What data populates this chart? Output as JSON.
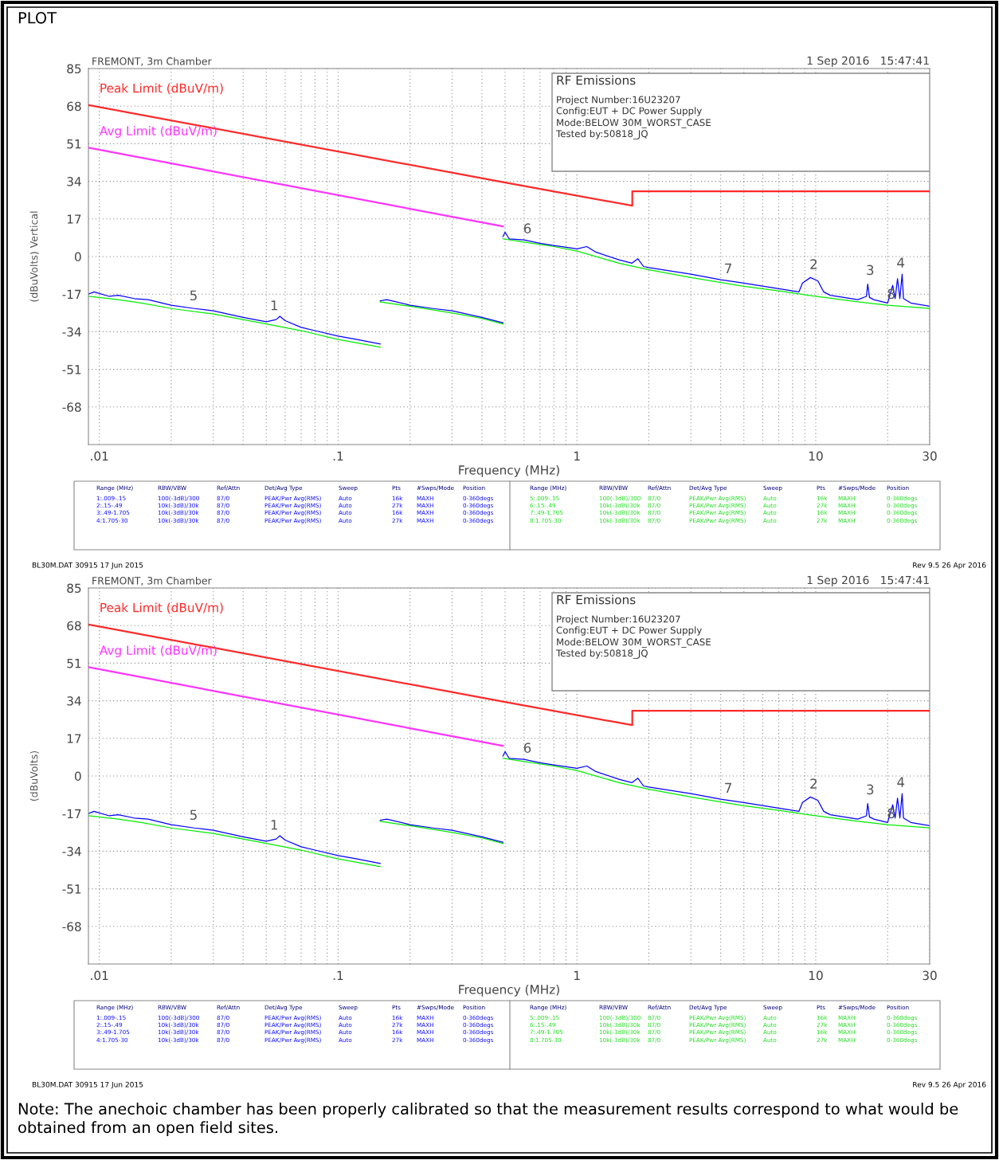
{
  "chart_data": [
    {
      "type": "line",
      "title": "FREMONT, 3m Chamber",
      "subtitle": "1 Sep 2016   15:47:41",
      "xlabel": "Frequency (MHz)",
      "ylabel": "(dBuVolts) Vertical",
      "log": "x",
      "grid": true,
      "legend": false,
      "xlim": [
        0.009,
        30
      ],
      "ylim": [
        -85,
        85
      ],
      "xticks": [
        {
          "value": 0.01,
          "label": ".01"
        },
        {
          "value": 0.02,
          "label": null
        },
        {
          "value": 0.03,
          "label": null
        },
        {
          "value": 0.04,
          "label": null
        },
        {
          "value": 0.05,
          "label": null
        },
        {
          "value": 0.06,
          "label": null
        },
        {
          "value": 0.07,
          "label": null
        },
        {
          "value": 0.08,
          "label": null
        },
        {
          "value": 0.09,
          "label": null
        },
        {
          "value": 0.1,
          "label": ".1"
        },
        {
          "value": 0.2,
          "label": null
        },
        {
          "value": 0.3,
          "label": null
        },
        {
          "value": 0.4,
          "label": null
        },
        {
          "value": 0.5,
          "label": null
        },
        {
          "value": 0.6,
          "label": null
        },
        {
          "value": 0.7,
          "label": null
        },
        {
          "value": 0.8,
          "label": null
        },
        {
          "value": 0.9,
          "label": null
        },
        1,
        {
          "value": 2,
          "label": null
        },
        {
          "value": 3,
          "label": null
        },
        {
          "value": 4,
          "label": null
        },
        {
          "value": 5,
          "label": null
        },
        {
          "value": 6,
          "label": null
        },
        {
          "value": 7,
          "label": null
        },
        {
          "value": 8,
          "label": null
        },
        {
          "value": 9,
          "label": null
        },
        10,
        {
          "value": 20,
          "label": null
        },
        30
      ],
      "yticks": [
        -68,
        -51,
        -34,
        -17,
        0,
        17,
        34,
        51,
        68,
        85
      ],
      "series": [
        {
          "name": "Peak Limit (dBuV/m)",
          "color": "#ff2a2a",
          "x": [
            0.009,
            0.49,
            1.705,
            1.705,
            30
          ],
          "values": [
            68.5,
            33.6,
            23,
            29.5,
            29.5
          ]
        },
        {
          "name": "Avg Limit (dBuV/m)",
          "color": "#ff33ff",
          "x": [
            0.009,
            0.49
          ],
          "values": [
            49.2,
            13.6
          ]
        },
        {
          "color": "#00ee00",
          "x": [
            0.009,
            0.012,
            0.015,
            0.02,
            0.03,
            0.04,
            0.05,
            0.07,
            0.1,
            0.12,
            0.15
          ],
          "values": [
            -18,
            -19.5,
            -21,
            -23.5,
            -26,
            -28.5,
            -30.5,
            -33.5,
            -37.5,
            -39,
            -41
          ]
        },
        {
          "color": "#00ee00",
          "x": [
            0.15,
            0.2,
            0.3,
            0.4,
            0.49
          ],
          "values": [
            -20.5,
            -22.5,
            -25.5,
            -28,
            -30.5
          ]
        },
        {
          "color": "#00ee00",
          "x": [
            0.49,
            0.6,
            0.8,
            1,
            1.5,
            2,
            3,
            5,
            7,
            10,
            15,
            20,
            30
          ],
          "values": [
            8,
            6.5,
            4.5,
            2.5,
            -3,
            -6,
            -9.5,
            -13.5,
            -15.5,
            -18,
            -20.5,
            -22,
            -23.5
          ]
        },
        {
          "color": "#0000ff",
          "x": [
            0.009,
            0.0095,
            0.011,
            0.012,
            0.014,
            0.016,
            0.02,
            0.025,
            0.03,
            0.04,
            0.05,
            0.055,
            0.057,
            0.06,
            0.07,
            0.08,
            0.1,
            0.12,
            0.15
          ],
          "values": [
            -17,
            -16,
            -18,
            -17.5,
            -19,
            -19.5,
            -22,
            -23.5,
            -24.5,
            -27.5,
            -29.5,
            -28.5,
            -27,
            -29,
            -32,
            -33.5,
            -36,
            -37.5,
            -39.5
          ]
        },
        {
          "color": "#0000ff",
          "x": [
            0.15,
            0.16,
            0.2,
            0.25,
            0.3,
            0.4,
            0.49
          ],
          "values": [
            -20,
            -19.5,
            -22,
            -23.5,
            -24.5,
            -27.5,
            -30
          ]
        },
        {
          "color": "#0000ff",
          "x": [
            0.49,
            0.5,
            0.52,
            0.6,
            0.7,
            0.8,
            1,
            1.1,
            1.2,
            1.5,
            1.7,
            1.8,
            1.9,
            2,
            3,
            4,
            5,
            7,
            8.5,
            8.8,
            9.5,
            10.2,
            10.8,
            11.5,
            15,
            16.3,
            16.5,
            16.8,
            17.5,
            20,
            21,
            21.5,
            22,
            22.5,
            23,
            23.3,
            25,
            30
          ],
          "values": [
            9,
            11,
            8,
            7.5,
            6,
            5,
            3.5,
            4.5,
            2,
            -1.5,
            -3,
            -1,
            -4.5,
            -5,
            -8,
            -10.5,
            -12,
            -14.5,
            -16,
            -12,
            -9.5,
            -11,
            -16,
            -17.5,
            -19.5,
            -18,
            -12.5,
            -18.5,
            -19.5,
            -21,
            -13,
            -19,
            -10,
            -19,
            -8,
            -19,
            -21,
            -22.5
          ]
        }
      ],
      "annotations": [
        "PLOT",
        "RF Emissions",
        "Project Number:16U23207",
        "Config:EUT + DC Power Supply",
        "Mode:BELOW 30M_WORST_CASE",
        "Tested by:50818_JQ",
        "BL30M.DAT 30915 17 Jun 2015",
        "Rev 9.5 26 Apr 2016",
        "Range (MHz)",
        "RBW/VBW",
        "Ref/Attn",
        "Det/Avg Type",
        "Sweep",
        "Pts",
        "#Swps/Mode",
        "Position",
        "1:.009-.15",
        "100(-3dB)/300",
        "87/0",
        "PEAK/Pwr Avg(RMS)",
        "Auto",
        "16k",
        "MAXH",
        "0-360degs",
        "2:.15-.49",
        "10k(-3dB)/30k",
        "87/0",
        "PEAK/Pwr Avg(RMS)",
        "Auto",
        "27k",
        "MAXH",
        "0-360degs",
        "3:.49-1.705",
        "10k(-3dB)/30k",
        "87/0",
        "PEAK/Pwr Avg(RMS)",
        "Auto",
        "16k",
        "MAXH",
        "0-360degs",
        "4:1.705-30",
        "10k(-3dB)/30k",
        "87/0",
        "PEAK/Pwr Avg(RMS)",
        "Auto",
        "27k",
        "MAXH",
        "0-360degs",
        "Range (MHz)",
        "RBW/VBW",
        "Ref/Attn",
        "Det/Avg Type",
        "Sweep",
        "Pts",
        "#Swps/Mode",
        "Position",
        "5:.009-.15",
        "100(-3dB)/300",
        "87/0",
        "PEAK/Pwr Avg(RMS)",
        "Auto",
        "16k",
        "MAXH",
        "0-360degs",
        "6:.15-.49",
        "10k(-3dB)/30k",
        "87/0",
        "PEAK/Pwr Avg(RMS)",
        "Auto",
        "27k",
        "MAXH",
        "0-360degs",
        "7:.49-1.705",
        "10k(-3dB)/30k",
        "87/0",
        "PEAK/Pwr Avg(RMS)",
        "Auto",
        "16k",
        "MAXH",
        "0-360degs",
        "8:1.705-30",
        "10k(-3dB)/30k",
        "87/0",
        "PEAK/Pwr Avg(RMS)",
        "Auto",
        "27k",
        "MAXH",
        "0-360degs",
        {
          "text": "1",
          "x": 0.054,
          "y": -28.5
        },
        {
          "text": "5",
          "x": 0.0248,
          "y": -24
        },
        {
          "text": "6",
          "x": 0.62,
          "y": 6.3
        },
        {
          "text": "7",
          "x": 4.3,
          "y": -11.8
        },
        {
          "text": "2",
          "x": 9.8,
          "y": -9.9
        },
        {
          "text": "3",
          "x": 16.9,
          "y": -12.5
        },
        {
          "text": "8",
          "x": 20.7,
          "y": -23.3
        },
        {
          "text": "4",
          "x": 22.7,
          "y": -9.2
        }
      ]
    },
    {
      "type": "line",
      "title": "FREMONT, 3m Chamber",
      "subtitle": "1 Sep 2016   15:47:41",
      "xlabel": "Frequency (MHz)",
      "ylabel": "(dBuVolts)",
      "log": "x",
      "grid": true,
      "legend": false,
      "xlim": [
        0.009,
        30
      ],
      "ylim": [
        -85,
        85
      ],
      "xticks": [
        {
          "value": 0.01,
          "label": ".01"
        },
        {
          "value": 0.02,
          "label": null
        },
        {
          "value": 0.03,
          "label": null
        },
        {
          "value": 0.04,
          "label": null
        },
        {
          "value": 0.05,
          "label": null
        },
        {
          "value": 0.06,
          "label": null
        },
        {
          "value": 0.07,
          "label": null
        },
        {
          "value": 0.08,
          "label": null
        },
        {
          "value": 0.09,
          "label": null
        },
        {
          "value": 0.1,
          "label": ".1"
        },
        {
          "value": 0.2,
          "label": null
        },
        {
          "value": 0.3,
          "label": null
        },
        {
          "value": 0.4,
          "label": null
        },
        {
          "value": 0.5,
          "label": null
        },
        {
          "value": 0.6,
          "label": null
        },
        {
          "value": 0.7,
          "label": null
        },
        {
          "value": 0.8,
          "label": null
        },
        {
          "value": 0.9,
          "label": null
        },
        1,
        {
          "value": 2,
          "label": null
        },
        {
          "value": 3,
          "label": null
        },
        {
          "value": 4,
          "label": null
        },
        {
          "value": 5,
          "label": null
        },
        {
          "value": 6,
          "label": null
        },
        {
          "value": 7,
          "label": null
        },
        {
          "value": 8,
          "label": null
        },
        {
          "value": 9,
          "label": null
        },
        10,
        {
          "value": 20,
          "label": null
        },
        30
      ],
      "yticks": [
        -68,
        -51,
        -34,
        -17,
        0,
        17,
        34,
        51,
        68,
        85
      ],
      "series": [
        {
          "name": "Peak Limit (dBuV/m)",
          "color": "#ff2a2a",
          "x": [
            0.009,
            0.49,
            1.705,
            1.705,
            30
          ],
          "values": [
            68.5,
            33.6,
            23,
            29.5,
            29.5
          ]
        },
        {
          "name": "Avg Limit (dBuV/m)",
          "color": "#ff33ff",
          "x": [
            0.009,
            0.49
          ],
          "values": [
            49.2,
            13.6
          ]
        },
        {
          "color": "#00ee00",
          "x": [
            0.009,
            0.012,
            0.015,
            0.02,
            0.03,
            0.04,
            0.05,
            0.07,
            0.1,
            0.12,
            0.15
          ],
          "values": [
            -18,
            -19.5,
            -21,
            -23.5,
            -26,
            -28.5,
            -30.5,
            -33.5,
            -37.5,
            -39,
            -41
          ]
        },
        {
          "color": "#00ee00",
          "x": [
            0.15,
            0.2,
            0.3,
            0.4,
            0.49
          ],
          "values": [
            -20.5,
            -22.5,
            -25.5,
            -28,
            -30.5
          ]
        },
        {
          "color": "#00ee00",
          "x": [
            0.49,
            0.6,
            0.8,
            1,
            1.5,
            2,
            3,
            5,
            7,
            10,
            15,
            20,
            30
          ],
          "values": [
            8,
            6.5,
            4.5,
            2.5,
            -3,
            -6,
            -9.5,
            -13.5,
            -15.5,
            -18,
            -20.5,
            -22,
            -23.5
          ]
        },
        {
          "color": "#0000ff",
          "x": [
            0.009,
            0.0095,
            0.011,
            0.012,
            0.014,
            0.016,
            0.02,
            0.025,
            0.03,
            0.04,
            0.05,
            0.055,
            0.057,
            0.06,
            0.07,
            0.08,
            0.1,
            0.12,
            0.15
          ],
          "values": [
            -17,
            -16,
            -18,
            -17.5,
            -19,
            -19.5,
            -22,
            -23.5,
            -24.5,
            -27.5,
            -29.5,
            -28.5,
            -27,
            -29,
            -32,
            -33.5,
            -36,
            -37.5,
            -39.5
          ]
        },
        {
          "color": "#0000ff",
          "x": [
            0.15,
            0.16,
            0.2,
            0.25,
            0.3,
            0.4,
            0.49
          ],
          "values": [
            -20,
            -19.5,
            -22,
            -23.5,
            -24.5,
            -27.5,
            -30
          ]
        },
        {
          "color": "#0000ff",
          "x": [
            0.49,
            0.5,
            0.52,
            0.6,
            0.7,
            0.8,
            1,
            1.1,
            1.2,
            1.5,
            1.7,
            1.8,
            1.9,
            2,
            3,
            4,
            5,
            7,
            8.5,
            8.8,
            9.5,
            10.2,
            10.8,
            11.5,
            15,
            16.3,
            16.5,
            16.8,
            17.5,
            20,
            21,
            21.5,
            22,
            22.5,
            23,
            23.3,
            25,
            30
          ],
          "values": [
            9,
            11,
            8,
            7.5,
            6,
            5,
            3.5,
            4.5,
            2,
            -1.5,
            -3,
            -1,
            -4.5,
            -5,
            -8,
            -10.5,
            -12,
            -14.5,
            -16,
            -12,
            -9.5,
            -11,
            -16,
            -17.5,
            -19.5,
            -18,
            -12.5,
            -18.5,
            -19.5,
            -21,
            -13,
            -19,
            -10,
            -19,
            -8,
            -19,
            -21,
            -22.5
          ]
        }
      ],
      "annotations": [
        "RF Emissions",
        "Project Number:16U23207",
        "Config:EUT + DC Power Supply",
        "Mode:BELOW 30M_WORST_CASE",
        "Tested by:50818_JQ",
        "BL30M.DAT 30915 17 Jun 2015",
        "Rev 9.5 26 Apr 2016",
        "Range (MHz)",
        "RBW/VBW",
        "Ref/Attn",
        "Det/Avg Type",
        "Sweep",
        "Pts",
        "#Swps/Mode",
        "Position",
        "1:.009-.15",
        "100(-3dB)/300",
        "87/0",
        "PEAK/Pwr Avg(RMS)",
        "Auto",
        "16k",
        "MAXH",
        "0-360degs",
        "2:.15-.49",
        "10k(-3dB)/30k",
        "87/0",
        "PEAK/Pwr Avg(RMS)",
        "Auto",
        "27k",
        "MAXH",
        "0-360degs",
        "3:.49-1.705",
        "10k(-3dB)/30k",
        "87/0",
        "PEAK/Pwr Avg(RMS)",
        "Auto",
        "16k",
        "MAXH",
        "0-360degs",
        "4:1.705-30",
        "10k(-3dB)/30k",
        "87/0",
        "PEAK/Pwr Avg(RMS)",
        "Auto",
        "27k",
        "MAXH",
        "0-360degs",
        "Range (MHz)",
        "RBW/VBW",
        "Ref/Attn",
        "Det/Avg Type",
        "Sweep",
        "Pts",
        "#Swps/Mode",
        "Position",
        "5:.009-.15",
        "100(-3dB)/300",
        "87/0",
        "PEAK/Pwr Avg(RMS)",
        "Auto",
        "16k",
        "MAXH",
        "0-360degs",
        "6:.15-.49",
        "10k(-3dB)/30k",
        "87/0",
        "PEAK/Pwr Avg(RMS)",
        "Auto",
        "27k",
        "MAXH",
        "0-360degs",
        "7:.49-1.705",
        "10k(-3dB)/30k",
        "87/0",
        "PEAK/Pwr Avg(RMS)",
        "Auto",
        "16k",
        "MAXH",
        "0-360degs",
        "8:1.705-30",
        "10k(-3dB)/30k",
        "87/0",
        "PEAK/Pwr Avg(RMS)",
        "Auto",
        "27k",
        "MAXH",
        "0-360degs",
        "Note: The anechoic chamber has been properly calibrated so that the measurement results correspond to what would be obtained from an open field sites.",
        {
          "text": "1",
          "x": 0.054,
          "y": -28.5
        },
        {
          "text": "5",
          "x": 0.0248,
          "y": -24
        },
        {
          "text": "6",
          "x": 0.62,
          "y": 6.3
        },
        {
          "text": "7",
          "x": 4.3,
          "y": -11.8
        },
        {
          "text": "2",
          "x": 9.8,
          "y": -9.9
        },
        {
          "text": "3",
          "x": 16.9,
          "y": -12.5
        },
        {
          "text": "8",
          "x": 20.7,
          "y": -23.3
        },
        {
          "text": "4",
          "x": 22.7,
          "y": -9.2
        }
      ]
    }
  ]
}
